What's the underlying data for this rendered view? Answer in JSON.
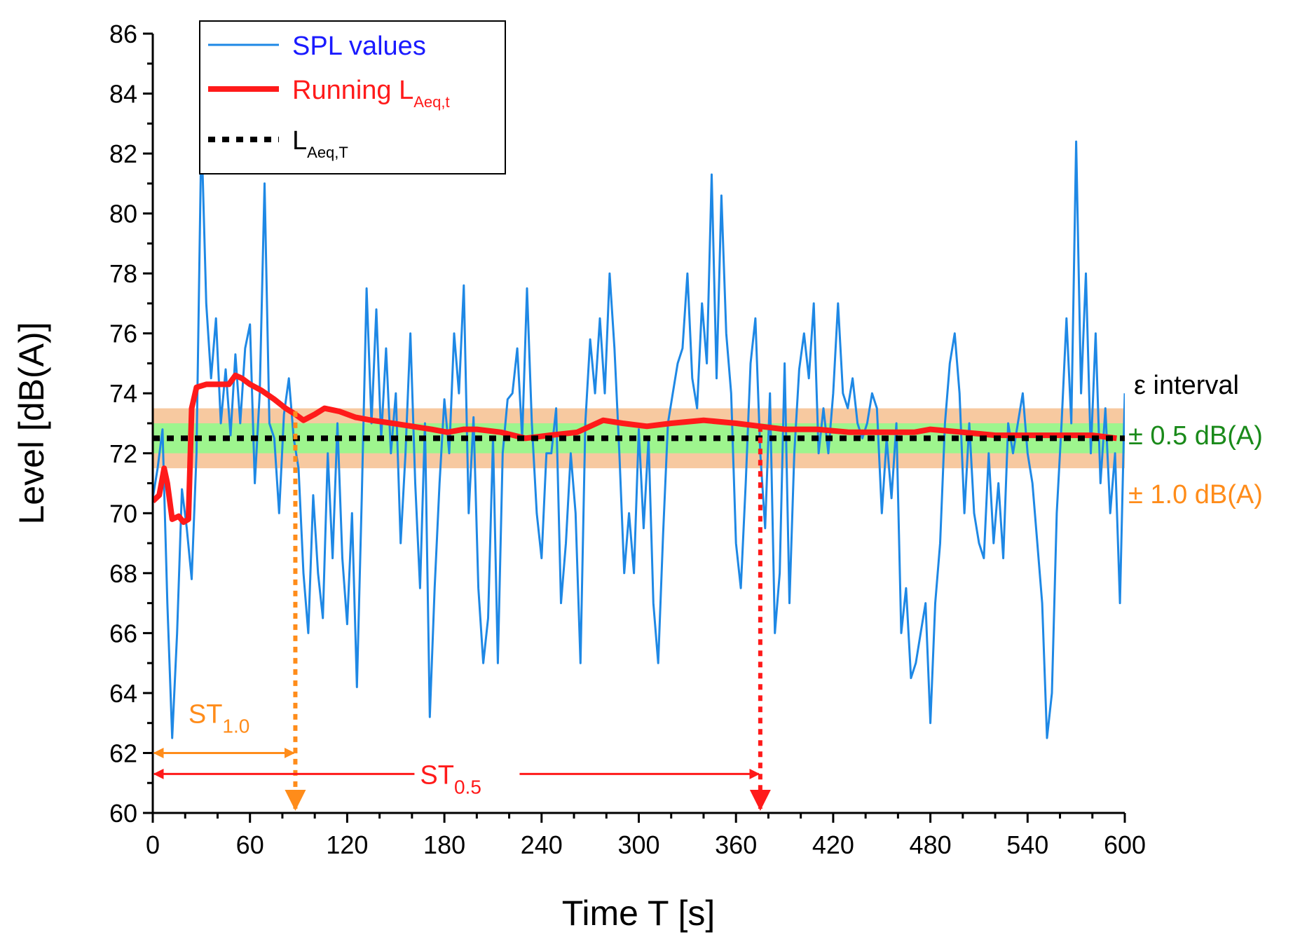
{
  "chart_data": {
    "type": "line",
    "title": "",
    "xlabel": "Time T [s]",
    "ylabel": "Level [dB(A)]",
    "xlim": [
      0,
      600
    ],
    "ylim": [
      60,
      86
    ],
    "x_ticks": [
      "0",
      "60",
      "120",
      "180",
      "240",
      "300",
      "360",
      "420",
      "480",
      "540",
      "600"
    ],
    "y_ticks": [
      "60",
      "62",
      "64",
      "66",
      "68",
      "70",
      "72",
      "74",
      "76",
      "78",
      "80",
      "82",
      "84",
      "86"
    ],
    "series": [
      {
        "name": "SPL values",
        "color": "#1e88e5",
        "style": "thin-line",
        "points": [
          [
            0,
            70.5
          ],
          [
            3,
            71.5
          ],
          [
            6,
            72.8
          ],
          [
            9,
            67
          ],
          [
            12,
            62.5
          ],
          [
            15,
            66
          ],
          [
            18,
            70.8
          ],
          [
            21,
            69.5
          ],
          [
            24,
            67.8
          ],
          [
            27,
            72
          ],
          [
            30,
            82.8
          ],
          [
            33,
            77
          ],
          [
            36,
            74.5
          ],
          [
            39,
            76.5
          ],
          [
            42,
            73
          ],
          [
            45,
            74.8
          ],
          [
            48,
            72.6
          ],
          [
            51,
            75.3
          ],
          [
            54,
            73
          ],
          [
            57,
            75.5
          ],
          [
            60,
            76.3
          ],
          [
            63,
            71
          ],
          [
            66,
            74
          ],
          [
            69,
            81
          ],
          [
            72,
            73
          ],
          [
            75,
            72.5
          ],
          [
            78,
            70
          ],
          [
            81,
            73.3
          ],
          [
            84,
            74.5
          ],
          [
            87,
            72.5
          ],
          [
            90,
            71.5
          ],
          [
            93,
            68
          ],
          [
            96,
            66
          ],
          [
            99,
            70.6
          ],
          [
            102,
            68
          ],
          [
            105,
            66.5
          ],
          [
            108,
            72
          ],
          [
            111,
            68.5
          ],
          [
            114,
            73
          ],
          [
            117,
            68.5
          ],
          [
            120,
            66.3
          ],
          [
            123,
            70
          ],
          [
            126,
            64.2
          ],
          [
            129,
            70.5
          ],
          [
            132,
            77.5
          ],
          [
            135,
            73
          ],
          [
            138,
            76.8
          ],
          [
            141,
            72.5
          ],
          [
            144,
            75.5
          ],
          [
            147,
            72
          ],
          [
            150,
            74
          ],
          [
            153,
            69
          ],
          [
            156,
            72
          ],
          [
            159,
            76
          ],
          [
            162,
            71
          ],
          [
            165,
            67.5
          ],
          [
            168,
            73
          ],
          [
            171,
            63.2
          ],
          [
            174,
            67.5
          ],
          [
            177,
            71
          ],
          [
            180,
            73.8
          ],
          [
            183,
            72
          ],
          [
            186,
            76
          ],
          [
            189,
            74
          ],
          [
            192,
            77.6
          ],
          [
            195,
            70
          ],
          [
            198,
            73.2
          ],
          [
            201,
            67.5
          ],
          [
            204,
            65
          ],
          [
            207,
            66.5
          ],
          [
            210,
            72.5
          ],
          [
            213,
            65
          ],
          [
            216,
            72
          ],
          [
            219,
            73.8
          ],
          [
            222,
            74
          ],
          [
            225,
            75.5
          ],
          [
            228,
            72.5
          ],
          [
            231,
            77.5
          ],
          [
            234,
            73
          ],
          [
            237,
            70
          ],
          [
            240,
            68.5
          ],
          [
            243,
            72
          ],
          [
            246,
            72
          ],
          [
            249,
            73.5
          ],
          [
            252,
            67
          ],
          [
            255,
            69
          ],
          [
            258,
            72
          ],
          [
            261,
            70
          ],
          [
            264,
            65
          ],
          [
            267,
            73
          ],
          [
            270,
            75.8
          ],
          [
            273,
            74
          ],
          [
            276,
            76.5
          ],
          [
            279,
            74
          ],
          [
            282,
            78
          ],
          [
            285,
            75.5
          ],
          [
            288,
            72
          ],
          [
            291,
            68
          ],
          [
            294,
            70
          ],
          [
            297,
            68
          ],
          [
            300,
            72.8
          ],
          [
            303,
            69.5
          ],
          [
            306,
            72.5
          ],
          [
            309,
            67
          ],
          [
            312,
            65
          ],
          [
            315,
            69.3
          ],
          [
            318,
            73
          ],
          [
            321,
            74
          ],
          [
            324,
            75
          ],
          [
            327,
            75.5
          ],
          [
            330,
            78
          ],
          [
            333,
            74.5
          ],
          [
            336,
            73.5
          ],
          [
            339,
            77
          ],
          [
            342,
            75
          ],
          [
            345,
            81.3
          ],
          [
            348,
            74.5
          ],
          [
            351,
            80.6
          ],
          [
            354,
            76
          ],
          [
            357,
            74
          ],
          [
            360,
            69
          ],
          [
            363,
            67.5
          ],
          [
            366,
            71
          ],
          [
            369,
            75
          ],
          [
            372,
            76.5
          ],
          [
            375,
            72
          ],
          [
            378,
            69.5
          ],
          [
            381,
            74
          ],
          [
            384,
            66
          ],
          [
            387,
            68
          ],
          [
            390,
            75
          ],
          [
            393,
            67
          ],
          [
            396,
            72
          ],
          [
            399,
            74.8
          ],
          [
            402,
            76
          ],
          [
            405,
            74.5
          ],
          [
            408,
            77
          ],
          [
            411,
            72
          ],
          [
            414,
            73.5
          ],
          [
            417,
            72
          ],
          [
            420,
            74
          ],
          [
            423,
            77
          ],
          [
            426,
            74
          ],
          [
            429,
            73.5
          ],
          [
            432,
            74.5
          ],
          [
            435,
            73
          ],
          [
            438,
            72.5
          ],
          [
            441,
            73
          ],
          [
            444,
            74
          ],
          [
            447,
            73.5
          ],
          [
            450,
            70
          ],
          [
            453,
            72.5
          ],
          [
            456,
            70.5
          ],
          [
            459,
            73
          ],
          [
            462,
            66
          ],
          [
            465,
            67.5
          ],
          [
            468,
            64.5
          ],
          [
            471,
            65
          ],
          [
            474,
            66
          ],
          [
            477,
            67
          ],
          [
            480,
            63
          ],
          [
            483,
            67
          ],
          [
            486,
            69
          ],
          [
            489,
            73
          ],
          [
            492,
            75
          ],
          [
            495,
            76
          ],
          [
            498,
            74
          ],
          [
            501,
            70
          ],
          [
            504,
            73
          ],
          [
            507,
            70
          ],
          [
            510,
            69
          ],
          [
            513,
            68.5
          ],
          [
            516,
            72
          ],
          [
            519,
            69
          ],
          [
            522,
            71
          ],
          [
            525,
            68.5
          ],
          [
            528,
            73
          ],
          [
            531,
            72
          ],
          [
            534,
            73
          ],
          [
            537,
            74
          ],
          [
            540,
            72
          ],
          [
            543,
            71
          ],
          [
            546,
            69
          ],
          [
            549,
            67
          ],
          [
            552,
            62.5
          ],
          [
            555,
            64
          ],
          [
            558,
            70
          ],
          [
            561,
            73
          ],
          [
            564,
            76.5
          ],
          [
            567,
            73
          ],
          [
            570,
            82.4
          ],
          [
            573,
            74
          ],
          [
            576,
            78
          ],
          [
            579,
            72
          ],
          [
            582,
            76
          ],
          [
            585,
            71
          ],
          [
            588,
            73.5
          ],
          [
            591,
            70
          ],
          [
            594,
            72
          ],
          [
            597,
            67
          ],
          [
            600,
            74
          ]
        ]
      },
      {
        "name": "Running L_Aeq,t",
        "color": "#ff1a1a",
        "style": "thick-line",
        "points": [
          [
            0,
            70.4
          ],
          [
            4,
            70.6
          ],
          [
            7,
            71.5
          ],
          [
            9,
            71.0
          ],
          [
            12,
            69.8
          ],
          [
            16,
            69.9
          ],
          [
            19,
            69.7
          ],
          [
            22,
            69.8
          ],
          [
            24,
            73.5
          ],
          [
            27,
            74.2
          ],
          [
            33,
            74.3
          ],
          [
            40,
            74.3
          ],
          [
            47,
            74.3
          ],
          [
            51,
            74.6
          ],
          [
            55,
            74.5
          ],
          [
            60,
            74.3
          ],
          [
            67,
            74.1
          ],
          [
            75,
            73.8
          ],
          [
            82,
            73.5
          ],
          [
            88,
            73.3
          ],
          [
            93,
            73.1
          ],
          [
            100,
            73.3
          ],
          [
            106,
            73.5
          ],
          [
            115,
            73.4
          ],
          [
            125,
            73.2
          ],
          [
            135,
            73.1
          ],
          [
            148,
            73.0
          ],
          [
            160,
            72.9
          ],
          [
            172,
            72.8
          ],
          [
            182,
            72.7
          ],
          [
            192,
            72.8
          ],
          [
            200,
            72.8
          ],
          [
            215,
            72.7
          ],
          [
            230,
            72.5
          ],
          [
            245,
            72.6
          ],
          [
            262,
            72.7
          ],
          [
            270,
            72.9
          ],
          [
            278,
            73.1
          ],
          [
            290,
            73.0
          ],
          [
            305,
            72.9
          ],
          [
            320,
            73.0
          ],
          [
            340,
            73.1
          ],
          [
            360,
            73.0
          ],
          [
            375,
            72.9
          ],
          [
            390,
            72.8
          ],
          [
            410,
            72.8
          ],
          [
            430,
            72.7
          ],
          [
            450,
            72.7
          ],
          [
            470,
            72.7
          ],
          [
            480,
            72.8
          ],
          [
            500,
            72.7
          ],
          [
            520,
            72.6
          ],
          [
            540,
            72.6
          ],
          [
            560,
            72.6
          ],
          [
            580,
            72.6
          ],
          [
            595,
            72.5
          ]
        ]
      },
      {
        "name": "L_Aeq,T",
        "color": "#000000",
        "style": "dotted-line",
        "value": 72.5
      }
    ],
    "bands": [
      {
        "label": "± 1.0 dB(A)",
        "center": 72.5,
        "half_width": 1.0,
        "color": "#f7c9a0"
      },
      {
        "label": "± 0.5 dB(A)",
        "center": 72.5,
        "half_width": 0.5,
        "color": "#9ef58e"
      }
    ],
    "markers": [
      {
        "label_main": "ST",
        "label_sub": "1.0",
        "t": 88,
        "color": "#ff8c1a"
      },
      {
        "label_main": "ST",
        "label_sub": "0.5",
        "t": 375,
        "color": "#ff1a1a"
      }
    ],
    "legend": {
      "position": "top-left",
      "items": [
        {
          "main": "SPL values",
          "sub": "",
          "color": "#1e88e5"
        },
        {
          "main": "Running L",
          "sub": "Aeq,t",
          "color": "#ff1a1a"
        },
        {
          "main": "L",
          "sub": "Aeq,T",
          "color": "#000000"
        }
      ]
    },
    "epsilon_label": "ε interval",
    "band_label_colors": {
      "narrow": "#1a8a1a",
      "wide": "#ff8c1a"
    }
  }
}
